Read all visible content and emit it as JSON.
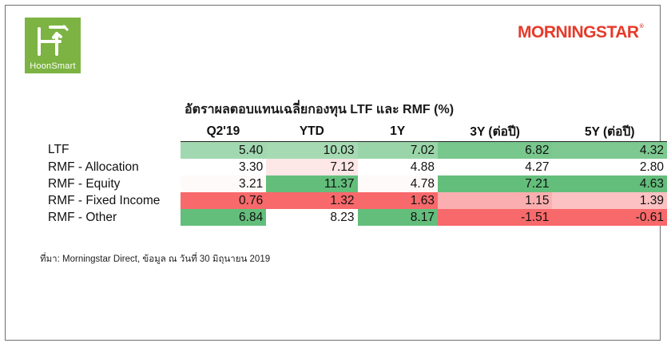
{
  "brand": {
    "left_logo_text": "HoonSmart",
    "right_logo_text": "MORNINGSTAR",
    "right_logo_mark": "®",
    "accent_green": "#7cb342",
    "accent_red": "#e63a2a"
  },
  "chart_data": {
    "type": "table",
    "title": "อัตราผลตอบแทนเฉลี่ยกองทุน LTF และ RMF (%)",
    "columns": [
      "Q2'19",
      "YTD",
      "1Y",
      "3Y (ต่อปี)",
      "5Y (ต่อปี)"
    ],
    "rows": [
      {
        "label": "LTF",
        "values": [
          5.4,
          10.03,
          7.02,
          6.82,
          4.32
        ]
      },
      {
        "label": "RMF - Allocation",
        "values": [
          3.3,
          7.12,
          4.88,
          4.27,
          2.8
        ]
      },
      {
        "label": "RMF - Equity",
        "values": [
          3.21,
          11.37,
          4.78,
          7.21,
          4.63
        ]
      },
      {
        "label": "RMF - Fixed Income",
        "values": [
          0.76,
          1.32,
          1.63,
          1.15,
          1.39
        ]
      },
      {
        "label": "RMF - Other",
        "values": [
          6.84,
          8.23,
          8.17,
          -1.51,
          -0.61
        ]
      }
    ],
    "heatmap": {
      "low_color": "#f8696b",
      "mid_color": "#ffffff",
      "high_color": "#63be7b",
      "scope": "per-column"
    },
    "source": "ที่มา: Morningstar Direct, ข้อมูล ณ วันที่ 30 มิถุนายน 2019"
  }
}
